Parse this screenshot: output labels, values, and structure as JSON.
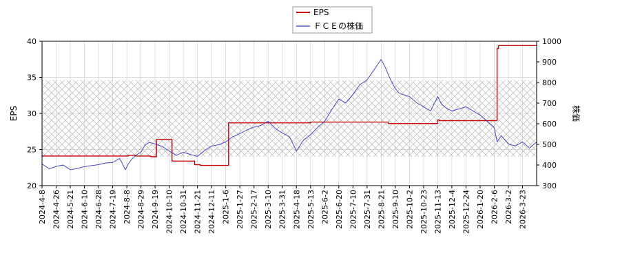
{
  "chart_data": {
    "type": "line",
    "legend": {
      "placement": "top-center",
      "entries": [
        {
          "label": "EPS",
          "color": "#cc0000"
        },
        {
          "label": "ＦＣＥの株価",
          "color": "#3333cc"
        }
      ]
    },
    "ylabel_left": "EPS",
    "ylabel_right": "株価",
    "ylim_left": [
      20,
      40
    ],
    "ylim_right": [
      300,
      1000
    ],
    "yticks_left": [
      "20",
      "25",
      "30",
      "35",
      "40"
    ],
    "yticks_right": [
      "300",
      "400",
      "500",
      "600",
      "700",
      "800",
      "900",
      "1000"
    ],
    "grid": true,
    "x_tick_labels": [
      "2024-4-8",
      "2024-4-26",
      "2024-5-21",
      "2024-6-10",
      "2024-6-28",
      "2024-7-19",
      "2024-8-8",
      "2024-8-29",
      "2024-9-19",
      "2024-10-10",
      "2024-10-31",
      "2024-11-21",
      "2024-12-11",
      "2025-1-6",
      "2025-1-27",
      "2025-2-17",
      "2025-3-10",
      "2025-3-31",
      "2025-4-18",
      "2025-5-13",
      "2025-6-2",
      "2025-6-20",
      "2025-7-10",
      "2025-7-31",
      "2025-8-21",
      "2025-9-10",
      "2025-10-2",
      "2025-10-23",
      "2025-11-13",
      "2025-12-4",
      "2025-12-24",
      "2026-1-20",
      "2026-2-6",
      "2026-3-2",
      "2026-3-23"
    ],
    "band": {
      "axis": "right",
      "range": [
        440,
        810
      ],
      "pattern": "crosshatch"
    },
    "series": [
      {
        "name": "EPS",
        "axis": "left",
        "color": "#cc0000",
        "step": true,
        "x": [
          0,
          6.1,
          6.6,
          7.7,
          8.1,
          9.2,
          10.8,
          11.2,
          13.2,
          19.0,
          24.5,
          28.0,
          28.1,
          32.2,
          32.3,
          35
        ],
        "values": [
          24.1,
          24.2,
          24.1,
          24.0,
          26.4,
          23.4,
          22.9,
          22.8,
          28.7,
          28.8,
          28.6,
          29.1,
          29.0,
          39.0,
          39.4,
          39.4
        ]
      },
      {
        "name": "ＦＣＥの株価",
        "axis": "right",
        "color": "#3333cc",
        "x": [
          0,
          0.5,
          1,
          1.5,
          2,
          2.5,
          3,
          3.5,
          4,
          4.5,
          5,
          5.5,
          5.9,
          6.1,
          6.4,
          6.7,
          7,
          7.3,
          7.6,
          8,
          8.5,
          9,
          9.5,
          10,
          10.5,
          11,
          11.5,
          12,
          12.5,
          13,
          13.5,
          14,
          14.5,
          15,
          15.5,
          16,
          16.5,
          17,
          17.5,
          18,
          18.5,
          19,
          19.5,
          20,
          20.5,
          21,
          21.5,
          22,
          22.5,
          23,
          23.5,
          24,
          24.3,
          24.6,
          24.9,
          25.2,
          25.5,
          26,
          26.5,
          27,
          27.5,
          28,
          28.3,
          28.7,
          29,
          29.5,
          30,
          30.5,
          31,
          31.5,
          32,
          32.2,
          32.5,
          33,
          33.5,
          34,
          34.5,
          35
        ],
        "values": [
          405,
          382,
          393,
          400,
          377,
          383,
          392,
          397,
          402,
          410,
          412,
          432,
          377,
          405,
          432,
          450,
          462,
          497,
          510,
          502,
          490,
          468,
          447,
          462,
          451,
          442,
          470,
          492,
          498,
          512,
          537,
          552,
          570,
          584,
          592,
          612,
          578,
          555,
          538,
          468,
          520,
          547,
          582,
          612,
          668,
          720,
          700,
          742,
          790,
          812,
          862,
          912,
          872,
          822,
          782,
          752,
          742,
          732,
          702,
          682,
          662,
          732,
          692,
          672,
          662,
          672,
          682,
          662,
          642,
          612,
          582,
          512,
          542,
          502,
          492,
          512,
          482,
          512
        ]
      }
    ]
  }
}
